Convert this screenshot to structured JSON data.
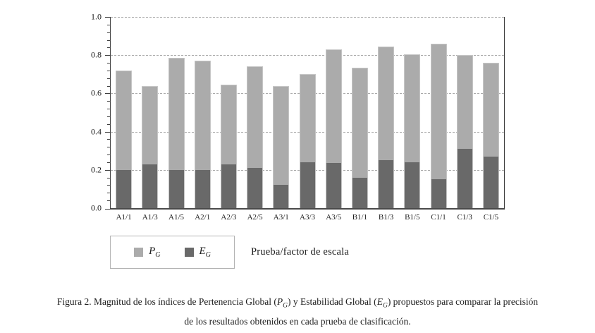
{
  "chart_data": {
    "type": "bar",
    "mode": "overlay",
    "title": "",
    "xlabel": "Prueba/factor de escala",
    "ylabel": "",
    "ylim": [
      0,
      1.0
    ],
    "ytick_labels": [
      "0.0",
      "0.2",
      "0.4",
      "0.6",
      "0.8",
      "1.0"
    ],
    "minor_tick_step": 0.04,
    "grid": "horizontal-dashed",
    "legend_position": "bottom-left",
    "categories": [
      "A1/1",
      "A1/3",
      "A1/5",
      "A2/1",
      "A2/3",
      "A2/5",
      "A3/1",
      "A3/3",
      "A3/5",
      "B1/1",
      "B1/3",
      "B1/5",
      "C1/1",
      "C1/3",
      "C1/5"
    ],
    "series": [
      {
        "name": "PG",
        "label": "P",
        "subscript": "G",
        "color": "#ababab",
        "values": [
          0.72,
          0.64,
          0.785,
          0.77,
          0.645,
          0.74,
          0.64,
          0.7,
          0.83,
          0.735,
          0.845,
          0.805,
          0.86,
          0.8,
          0.76
        ]
      },
      {
        "name": "EG",
        "label": "E",
        "subscript": "G",
        "color": "#696969",
        "values": [
          0.2,
          0.23,
          0.2,
          0.2,
          0.23,
          0.21,
          0.12,
          0.24,
          0.235,
          0.16,
          0.25,
          0.24,
          0.15,
          0.31,
          0.27
        ]
      }
    ]
  },
  "legend": {
    "entries": [
      {
        "symbol": "P",
        "subscript": "G"
      },
      {
        "symbol": "E",
        "subscript": "G"
      }
    ],
    "note": "Prueba/factor de escala"
  },
  "caption": {
    "part1": "Figura 2. Magnitud de los índices de Pertenencia Global (",
    "sym1": "P",
    "sub1": "G",
    "part2": ") y Estabilidad Global (",
    "sym2": "E",
    "sub2": "G",
    "part3": ") propuestos para comparar la precisión",
    "line2": "de los resultados obtenidos en cada prueba de clasificación."
  }
}
